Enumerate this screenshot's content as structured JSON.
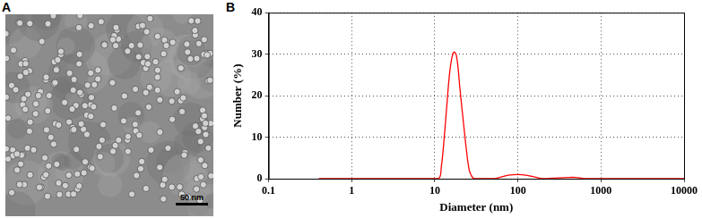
{
  "panel_labels": [
    "A",
    "B"
  ],
  "image": {
    "scale_bar": "50 nm"
  },
  "chart_data": {
    "type": "line",
    "xlabel": "Diameter (nm)",
    "ylabel": "Number (%)",
    "x": [
      0.4,
      1,
      5,
      11,
      12,
      13,
      14,
      15,
      16,
      17,
      18,
      19,
      20,
      22,
      24,
      26,
      28,
      30,
      50,
      60,
      80,
      100,
      130,
      160,
      200,
      300,
      400,
      500,
      600,
      700,
      1000,
      10000
    ],
    "values": [
      0,
      0,
      0,
      0,
      3,
      10,
      18,
      25,
      29,
      30.5,
      30,
      27,
      22,
      14,
      7,
      2,
      0.5,
      0,
      0,
      0.3,
      0.9,
      1,
      0.8,
      0.4,
      0,
      0.2,
      0.3,
      0.3,
      0.1,
      0,
      0,
      0
    ],
    "color": "#ff0000",
    "xlim": [
      0.1,
      10000
    ],
    "xticks": [
      0.1,
      1,
      10,
      100,
      1000,
      10000
    ],
    "ylim": [
      0,
      40
    ],
    "yticks": [
      0,
      10,
      20,
      30,
      40
    ],
    "log": "x",
    "grid": true
  }
}
